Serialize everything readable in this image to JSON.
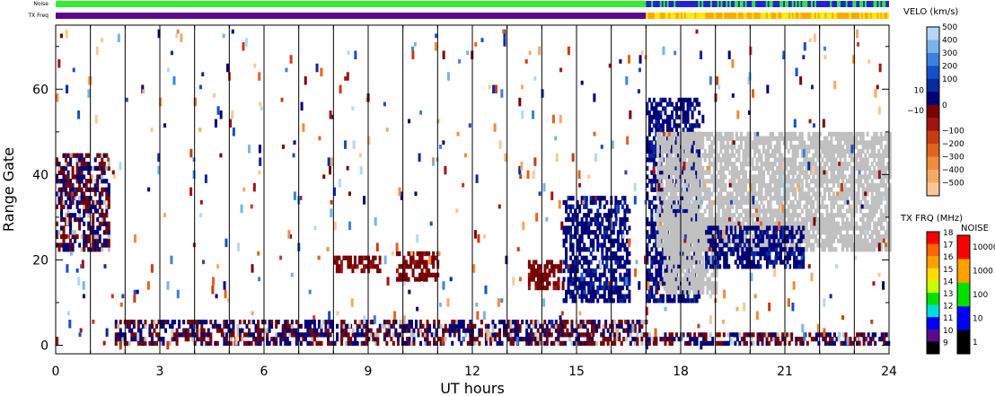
{
  "chart_data": {
    "type": "heatmap",
    "title": "",
    "xlabel": "UT hours",
    "ylabel": "Range Gate",
    "xlim": [
      0,
      24
    ],
    "ylim": [
      -2,
      75
    ],
    "x_ticks": [
      0,
      3,
      6,
      9,
      12,
      15,
      18,
      21,
      24
    ],
    "y_ticks": [
      0,
      20,
      40,
      60
    ],
    "grid": "vertical lines every 1 hour",
    "status_bars": [
      {
        "label": "Noise",
        "segments": [
          {
            "from": 0,
            "to": 17,
            "color": "#33ee33"
          },
          {
            "from": 17,
            "to": 24,
            "color": "#2222dd"
          }
        ]
      },
      {
        "label": "TX Freq",
        "segments": [
          {
            "from": 0,
            "to": 17,
            "color": "#5a0a8a"
          },
          {
            "from": 17,
            "to": 24,
            "color": "#ffaa00"
          }
        ]
      }
    ],
    "velocity_colorbar": {
      "title": "VELO (km/s)",
      "ticks": [
        "500",
        "400",
        "300",
        "200",
        "100",
        "10",
        "0",
        "−10",
        "−100",
        "−200",
        "−300",
        "−400",
        "−500"
      ],
      "colors": [
        "#b4d8f5",
        "#78b4ea",
        "#3c82dc",
        "#1450c8",
        "#0a28a0",
        "#000078",
        "#780000",
        "#a01414",
        "#c83c14",
        "#e1641e",
        "#f08c3c",
        "#f5aa64",
        "#fac896"
      ]
    },
    "frequency_colorbar": {
      "title": "TX FRQ (MHz)",
      "ticks": [
        "18",
        "17",
        "16",
        "15",
        "14",
        "13",
        "12",
        "11",
        "10",
        "9"
      ],
      "colors": [
        "#ff0000",
        "#ff6400",
        "#ffa000",
        "#ffdc00",
        "#c8ff00",
        "#00e100",
        "#00dcdc",
        "#0000ff",
        "#5a0a8a",
        "#000000"
      ]
    },
    "noise_colorbar": {
      "title": "NOISE",
      "ticks": [
        "10000",
        "1000",
        "100",
        "10",
        "1"
      ],
      "colors": [
        "#ff0000",
        "#ffa000",
        "#00e100",
        "#0000ff",
        "#000000"
      ]
    },
    "ground_scatter_color": "#c0c0c0",
    "regions": [
      {
        "x": [
          0,
          1.5
        ],
        "gate": [
          22,
          45
        ],
        "value": "mixed -100 / ground scatter"
      },
      {
        "x": [
          1.7,
          17
        ],
        "gate": [
          0,
          6
        ],
        "value": "mixed low-gate echoes"
      },
      {
        "x": [
          8,
          9.3
        ],
        "gate": [
          17,
          21
        ],
        "value": -100
      },
      {
        "x": [
          9.8,
          11
        ],
        "gate": [
          15,
          22
        ],
        "value": -150
      },
      {
        "x": [
          13.6,
          14.6
        ],
        "gate": [
          13,
          20
        ],
        "value": -150
      },
      {
        "x": [
          14.6,
          16.5
        ],
        "gate": [
          10,
          35
        ],
        "value": 50
      },
      {
        "x": [
          17,
          18.5
        ],
        "gate": [
          10,
          58
        ],
        "value": 50
      },
      {
        "x": [
          17.3,
          24
        ],
        "gate": [
          22,
          50
        ],
        "value": "ground scatter"
      },
      {
        "x": [
          17.5,
          19
        ],
        "gate": [
          12,
          30
        ],
        "value": "ground scatter"
      },
      {
        "x": [
          18.7,
          21.5
        ],
        "gate": [
          18,
          28
        ],
        "value": 50
      },
      {
        "x": [
          17,
          24
        ],
        "gate": [
          0,
          3
        ],
        "value": "mixed"
      }
    ]
  }
}
